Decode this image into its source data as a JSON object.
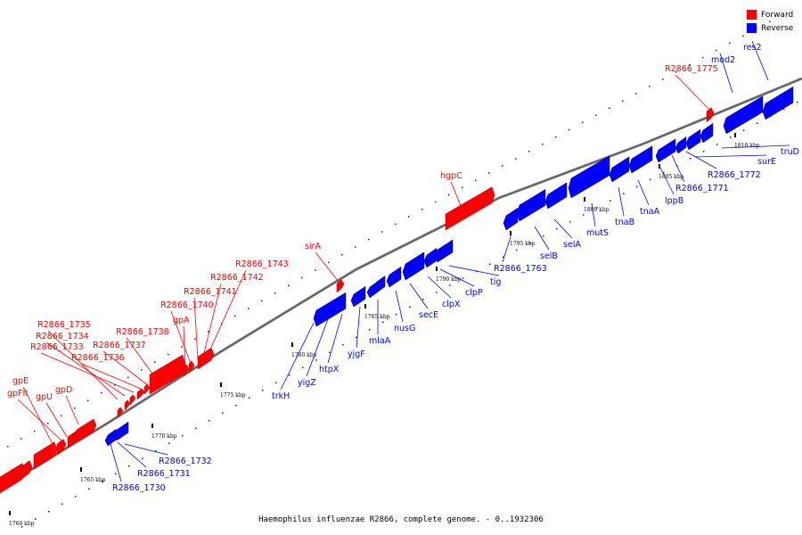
{
  "caption": "Haemophilus influenzae R2866, complete genome. - 0..1932306",
  "legend": [
    {
      "label": "Forward",
      "color": "#ff0000"
    },
    {
      "label": "Reverse",
      "color": "#0000ff"
    }
  ],
  "ticks": [
    "1760 kbp",
    "1765 kbp",
    "1770 kbp",
    "1775 kbp",
    "1780 kbp",
    "1785 kbp",
    "1790 kbp",
    "1795 kbp",
    "1800 kbp",
    "1805 kbp",
    "1810 kbp"
  ],
  "forward_genes": [
    "gpE",
    "gpFII",
    "gpU",
    "gpD",
    "R2866_1735",
    "R2866_1734",
    "R2866_1733",
    "R2866_1736",
    "R2866_1737",
    "R2866_1738",
    "gpA",
    "R2866_1740",
    "R2866_1741",
    "R2866_1742",
    "R2866_1743",
    "sirA",
    "hgpC",
    "R2866_1775"
  ],
  "reverse_genes": [
    "R2866_1732",
    "R2866_1731",
    "R2866_1730",
    "trkH",
    "yigZ",
    "htpX",
    "yjgF",
    "mlaA",
    "nusG",
    "secE",
    "clpX",
    "clpP",
    "tig",
    "R2866_1763",
    "selB",
    "selA",
    "mutS",
    "tnaB",
    "tnaA",
    "lppB",
    "R2866_1771",
    "R2866_1772",
    "surE",
    "truD",
    "mod2",
    "res2"
  ]
}
